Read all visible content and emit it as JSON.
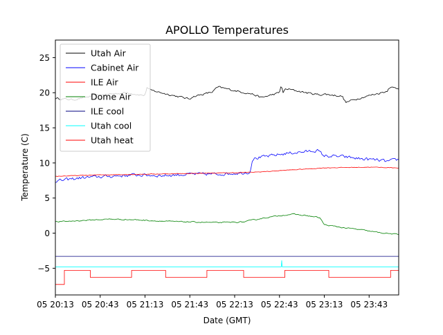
{
  "chart_data": {
    "type": "line",
    "title": "APOLLO Temperatures",
    "xlabel": "Date (GMT)",
    "ylabel": "Temperature (C)",
    "xlim": [
      20.0,
      23.83
    ],
    "ylim": [
      -8.8,
      27.5
    ],
    "grid": false,
    "legend_position": "top-left",
    "x_ticks": [
      {
        "value": 20.0,
        "label": "05 20:13"
      },
      {
        "value": 20.5,
        "label": "05 20:43"
      },
      {
        "value": 21.0,
        "label": "05 21:13"
      },
      {
        "value": 21.5,
        "label": "05 21:43"
      },
      {
        "value": 22.0,
        "label": "05 22:13"
      },
      {
        "value": 22.5,
        "label": "05 22:43"
      },
      {
        "value": 23.0,
        "label": "05 23:13"
      },
      {
        "value": 23.5,
        "label": "05 23:43"
      }
    ],
    "y_ticks": [
      {
        "value": -5,
        "label": "−5"
      },
      {
        "value": 0,
        "label": "0"
      },
      {
        "value": 5,
        "label": "5"
      },
      {
        "value": 10,
        "label": "10"
      },
      {
        "value": 15,
        "label": "15"
      },
      {
        "value": 20,
        "label": "20"
      },
      {
        "value": 25,
        "label": "25"
      }
    ],
    "series": [
      {
        "name": "Utah Air",
        "color": "#000000",
        "noise": 0.12,
        "x": [
          20.0,
          20.2,
          20.4,
          20.6,
          20.8,
          21.0,
          21.02,
          21.05,
          21.25,
          21.5,
          21.52,
          21.75,
          21.8,
          21.82,
          22.0,
          22.2,
          22.3,
          22.5,
          22.52,
          22.54,
          22.56,
          22.6,
          22.8,
          22.95,
          23.0,
          23.2,
          23.24,
          23.3,
          23.5,
          23.7,
          23.72,
          23.83
        ],
        "y": [
          19.2,
          19.0,
          19.5,
          19.8,
          20.0,
          19.6,
          20.8,
          20.4,
          19.8,
          19.1,
          19.4,
          20.1,
          20.7,
          20.8,
          20.3,
          19.8,
          19.3,
          20.0,
          21.2,
          19.9,
          20.5,
          20.5,
          20.0,
          19.7,
          19.8,
          19.5,
          18.6,
          18.9,
          19.6,
          20.2,
          20.8,
          20.6
        ]
      },
      {
        "name": "Cabinet Air",
        "color": "#0000ff",
        "noise": 0.2,
        "x": [
          20.0,
          20.3,
          20.6,
          20.9,
          21.2,
          21.5,
          21.8,
          22.1,
          22.17,
          22.2,
          22.4,
          22.6,
          22.8,
          22.92,
          23.0,
          23.2,
          23.4,
          23.6,
          23.7,
          23.83
        ],
        "y": [
          7.4,
          7.9,
          8.1,
          8.3,
          8.2,
          8.4,
          8.4,
          8.6,
          8.7,
          10.6,
          11.0,
          11.4,
          11.6,
          11.8,
          11.0,
          10.9,
          10.6,
          10.4,
          10.2,
          10.5
        ]
      },
      {
        "name": "ILE Air",
        "color": "#ff0000",
        "noise": 0.04,
        "x": [
          20.0,
          20.5,
          21.0,
          21.5,
          22.0,
          22.25,
          22.5,
          22.75,
          23.0,
          23.5,
          23.83
        ],
        "y": [
          8.1,
          8.3,
          8.4,
          8.5,
          8.6,
          8.7,
          8.9,
          9.1,
          9.3,
          9.4,
          9.3
        ]
      },
      {
        "name": "Dome Air",
        "color": "#008000",
        "noise": 0.07,
        "x": [
          20.0,
          20.3,
          20.6,
          20.9,
          21.2,
          21.5,
          21.8,
          22.1,
          22.3,
          22.5,
          22.65,
          22.8,
          22.95,
          23.0,
          23.2,
          23.4,
          23.6,
          23.83
        ],
        "y": [
          1.6,
          1.8,
          2.0,
          1.9,
          1.7,
          1.6,
          1.5,
          1.6,
          2.1,
          2.5,
          2.7,
          2.5,
          2.2,
          1.2,
          0.8,
          0.5,
          0.1,
          -0.2
        ]
      },
      {
        "name": "ILE cool",
        "color": "#00007f",
        "noise": 0,
        "x": [
          20.0,
          23.83
        ],
        "y": [
          -3.3,
          -3.3
        ]
      },
      {
        "name": "Utah cool",
        "color": "#00ffff",
        "noise": 0,
        "x": [
          20.0,
          22.52,
          22.525,
          22.53,
          23.83
        ],
        "y": [
          -4.8,
          -4.8,
          -3.9,
          -4.8,
          -4.8
        ]
      },
      {
        "name": "Utah heat",
        "color": "#ff0000",
        "noise": 0,
        "step": true,
        "x": [
          20.0,
          20.1,
          20.39,
          20.85,
          21.23,
          21.69,
          22.1,
          22.56,
          23.05,
          23.74,
          23.83
        ],
        "y": [
          -7.3,
          -5.3,
          -6.3,
          -5.3,
          -6.3,
          -5.3,
          -6.3,
          -5.3,
          -6.3,
          -5.3,
          -6.3
        ]
      }
    ]
  }
}
